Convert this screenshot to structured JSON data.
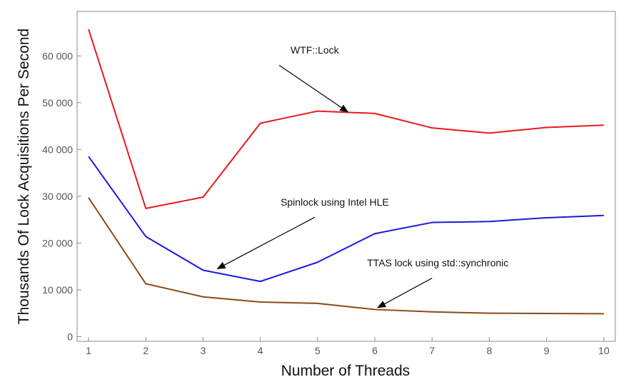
{
  "chart_data": {
    "type": "line",
    "xlabel": "Number of Threads",
    "ylabel": "Thousands Of Lock Acquisitions Per Second",
    "xlim": [
      0.8,
      10.2
    ],
    "ylim": [
      -1000,
      69500
    ],
    "grid": false,
    "x": [
      1,
      2,
      3,
      4,
      5,
      6,
      7,
      8,
      9,
      10
    ],
    "x_ticks": [
      1,
      2,
      3,
      4,
      5,
      6,
      7,
      8,
      9,
      10
    ],
    "y_ticks": [
      0,
      10000,
      20000,
      30000,
      40000,
      50000,
      60000
    ],
    "y_tick_labels": [
      "0",
      "10 000",
      "20 000",
      "30 000",
      "40 000",
      "50 000",
      "60 000"
    ],
    "series": [
      {
        "name": "WTF::Lock",
        "color": "#e8191c",
        "values": [
          65700,
          27400,
          29800,
          45600,
          48200,
          47700,
          44600,
          43500,
          44700,
          45200
        ]
      },
      {
        "name": "Spinlock using Intel HLE",
        "color": "#1a1ae0",
        "values": [
          38500,
          21400,
          14200,
          11800,
          15900,
          22000,
          24400,
          24600,
          25400,
          25900
        ]
      },
      {
        "name": "TTAS lock using std::synchronic",
        "color": "#8b4a17",
        "values": [
          29700,
          11300,
          8500,
          7400,
          7100,
          5800,
          5300,
          5000,
          4950,
          4900
        ]
      }
    ],
    "annotations": [
      {
        "text": "WTF::Lock",
        "series": 0,
        "label_at": [
          4.95,
          60500
        ],
        "arrow_from": [
          4.33,
          58000
        ],
        "arrow_to": [
          5.53,
          48000
        ]
      },
      {
        "text": "Spinlock using Intel HLE",
        "series": 1,
        "label_at": [
          5.3,
          28000
        ],
        "arrow_from": [
          4.95,
          25500
        ],
        "arrow_to": [
          3.25,
          14500
        ]
      },
      {
        "text": "TTAS lock using std::synchronic",
        "series": 2,
        "label_at": [
          7.1,
          15000
        ],
        "arrow_from": [
          7.0,
          12500
        ],
        "arrow_to": [
          6.05,
          6200
        ]
      }
    ]
  }
}
